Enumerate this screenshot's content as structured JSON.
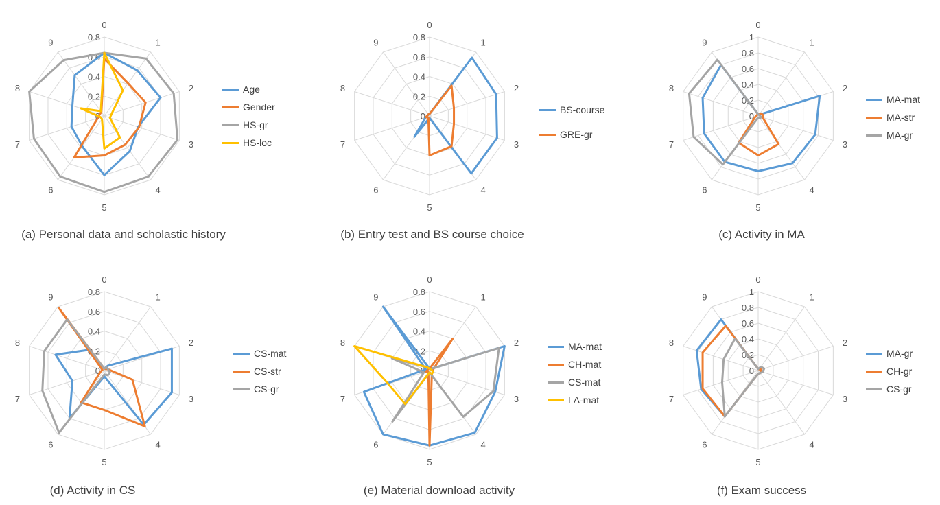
{
  "chart_data": [
    {
      "type": "radar",
      "caption": "(a) Personal data and scholastic history",
      "axes": [
        "0",
        "1",
        "2",
        "3",
        "4",
        "5",
        "6",
        "7",
        "8",
        "9"
      ],
      "rmax": 0.8,
      "ticks": [
        "0",
        "0.2",
        "0.4",
        "0.6",
        "0.8"
      ],
      "series": [
        {
          "name": "Age",
          "color": "#5b9bd5",
          "values": [
            0.64,
            0.57,
            0.6,
            0.36,
            0.44,
            0.6,
            0.38,
            0.35,
            0.34,
            0.51
          ]
        },
        {
          "name": "Gender",
          "color": "#ed7d31",
          "values": [
            0.58,
            0.41,
            0.44,
            0.37,
            0.36,
            0.4,
            0.52,
            0.07,
            0.05,
            0.05
          ]
        },
        {
          "name": "HS-gr",
          "color": "#a5a5a5",
          "values": [
            0.64,
            0.72,
            0.74,
            0.78,
            0.76,
            0.77,
            0.76,
            0.75,
            0.8,
            0.7
          ]
        },
        {
          "name": "HS-loc",
          "color": "#ffc000",
          "values": [
            0.64,
            0.32,
            0.08,
            0.06,
            0.27,
            0.33,
            0.04,
            0.04,
            0.25,
            0.06
          ]
        }
      ]
    },
    {
      "type": "radar",
      "caption": "(b) Entry test and BS course choice",
      "axes": [
        "0",
        "1",
        "2",
        "3",
        "4",
        "5",
        "6",
        "7",
        "8",
        "9"
      ],
      "rmax": 0.8,
      "ticks": [
        "0",
        "0.2",
        "0.4",
        "0.6",
        "0.8"
      ],
      "series": [
        {
          "name": "BS-course",
          "color": "#5b9bd5",
          "values": [
            0.02,
            0.73,
            0.71,
            0.72,
            0.72,
            0.02,
            0.26,
            0.04,
            0.02,
            0.02
          ]
        },
        {
          "name": "GRE-gr",
          "color": "#ed7d31",
          "values": [
            0.02,
            0.38,
            0.26,
            0.26,
            0.38,
            0.4,
            0.02,
            0.04,
            0.02,
            0.02
          ]
        }
      ]
    },
    {
      "type": "radar",
      "caption": "(c) Activity in MA",
      "axes": [
        "0",
        "1",
        "2",
        "3",
        "4",
        "5",
        "6",
        "7",
        "8",
        "9"
      ],
      "rmax": 1,
      "ticks": [
        "0",
        "0.2",
        "0.4",
        "0.6",
        "0.8",
        "1"
      ],
      "series": [
        {
          "name": "MA-mat",
          "color": "#5b9bd5",
          "values": [
            0.02,
            0.02,
            0.82,
            0.76,
            0.74,
            0.7,
            0.72,
            0.72,
            0.74,
            0.8
          ]
        },
        {
          "name": "MA-str",
          "color": "#ed7d31",
          "values": [
            0.02,
            0.04,
            0.06,
            0.06,
            0.44,
            0.5,
            0.42,
            0.04,
            0.02,
            0.02
          ]
        },
        {
          "name": "MA-gr",
          "color": "#a5a5a5",
          "values": [
            0.02,
            0.02,
            0.02,
            0.04,
            0.04,
            0.02,
            0.76,
            0.86,
            0.92,
            0.88
          ]
        }
      ]
    },
    {
      "type": "radar",
      "caption": "(d) Activity in CS",
      "axes": [
        "0",
        "1",
        "2",
        "3",
        "4",
        "5",
        "6",
        "7",
        "8",
        "9"
      ],
      "rmax": 0.8,
      "ticks": [
        "0",
        "0.2",
        "0.4",
        "0.6",
        "0.8"
      ],
      "series": [
        {
          "name": "CS-mat",
          "color": "#5b9bd5",
          "values": [
            0.02,
            0.06,
            0.72,
            0.72,
            0.68,
            0.06,
            0.6,
            0.34,
            0.52,
            0.26
          ]
        },
        {
          "name": "CS-str",
          "color": "#ed7d31",
          "values": [
            0.02,
            0.02,
            0.04,
            0.3,
            0.7,
            0.4,
            0.4,
            0.04,
            0.02,
            0.78
          ]
        },
        {
          "name": "CS-gr",
          "color": "#a5a5a5",
          "values": [
            0.02,
            0.04,
            0.04,
            0.06,
            0.06,
            0.04,
            0.78,
            0.66,
            0.64,
            0.64
          ]
        }
      ]
    },
    {
      "type": "radar",
      "caption": "(e) Material download activity",
      "axes": [
        "0",
        "1",
        "2",
        "3",
        "4",
        "5",
        "6",
        "7",
        "8",
        "9"
      ],
      "rmax": 0.8,
      "ticks": [
        "0",
        "0.2",
        "0.4",
        "0.6",
        "0.8"
      ],
      "series": [
        {
          "name": "MA-mat",
          "color": "#5b9bd5",
          "values": [
            0.02,
            0.02,
            0.82,
            0.7,
            0.78,
            0.76,
            0.8,
            0.7,
            0.04,
            0.86
          ]
        },
        {
          "name": "CH-mat",
          "color": "#ed7d31",
          "values": [
            0.02,
            0.4,
            0.04,
            0.04,
            0.04,
            0.76,
            0.02,
            0.04,
            0.02,
            0.02
          ]
        },
        {
          "name": "CS-mat",
          "color": "#a5a5a5",
          "values": [
            0.02,
            0.02,
            0.74,
            0.68,
            0.58,
            0.02,
            0.64,
            0.06,
            0.4,
            0.04
          ]
        },
        {
          "name": "LA-mat",
          "color": "#ffc000",
          "values": [
            0.02,
            0.02,
            0.02,
            0.04,
            0.04,
            0.02,
            0.42,
            0.44,
            0.8,
            0.04
          ]
        }
      ]
    },
    {
      "type": "radar",
      "caption": "(f) Exam success",
      "axes": [
        "0",
        "1",
        "2",
        "3",
        "4",
        "5",
        "6",
        "7",
        "8",
        "9"
      ],
      "rmax": 1,
      "ticks": [
        "0",
        "0.2",
        "0.4",
        "0.6",
        "0.8",
        "1"
      ],
      "series": [
        {
          "name": "MA-gr",
          "color": "#5b9bd5",
          "values": [
            0.02,
            0.02,
            0.04,
            0.04,
            0.04,
            0.04,
            0.72,
            0.76,
            0.82,
            0.8
          ]
        },
        {
          "name": "CH-gr",
          "color": "#ed7d31",
          "values": [
            0.02,
            0.02,
            0.04,
            0.04,
            0.04,
            0.04,
            0.72,
            0.74,
            0.74,
            0.7
          ]
        },
        {
          "name": "CS-gr",
          "color": "#a5a5a5",
          "values": [
            0.02,
            0.06,
            0.08,
            0.06,
            0.04,
            0.04,
            0.72,
            0.48,
            0.46,
            0.5
          ]
        }
      ]
    }
  ]
}
